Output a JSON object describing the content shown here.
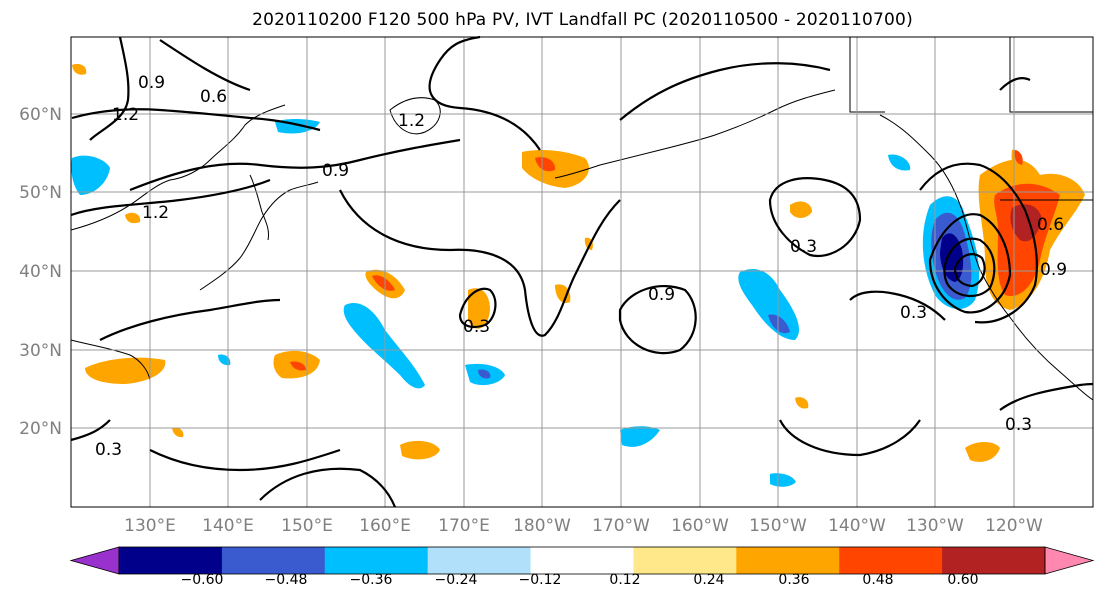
{
  "title": "2020110200 F120 500 hPa PV, IVT Landfall PC (2020110500 - 2020110700)",
  "lat_labels": [
    "60°N",
    "50°N",
    "40°N",
    "30°N",
    "20°N"
  ],
  "lon_labels": [
    "130°E",
    "140°E",
    "150°E",
    "160°E",
    "170°E",
    "180°W",
    "170°W",
    "160°W",
    "150°W",
    "140°W",
    "130°W",
    "120°W"
  ],
  "colorbar": {
    "ticks": [
      "−0.60",
      "−0.48",
      "−0.36",
      "−0.24",
      "−0.12",
      "0.12",
      "0.24",
      "0.36",
      "0.48",
      "0.60"
    ],
    "colors": [
      "#9932cc",
      "#00008b",
      "#3a5bd0",
      "#00bfff",
      "#b0e0fa",
      "#ffffff",
      "#ffe88a",
      "#ffa500",
      "#ff4500",
      "#b22222",
      "#ff88b0"
    ]
  },
  "contour_labels": [
    "0.9",
    "0.6",
    "1.2",
    "0.9",
    "1.2",
    "1.2",
    "0.3",
    "0.3",
    "0.9",
    "0.3",
    "0.3",
    "0.3",
    "0.6",
    "0.9"
  ],
  "colors": {
    "land_outline": "#000000",
    "grid": "#999999",
    "contour": "#000000"
  }
}
